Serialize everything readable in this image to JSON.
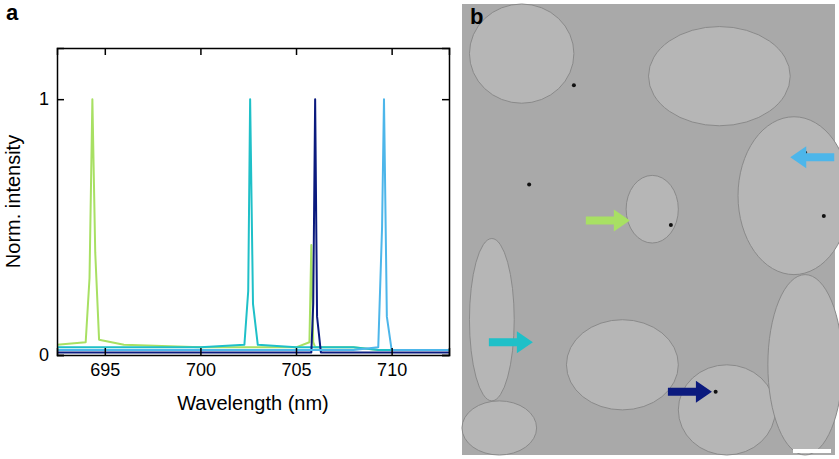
{
  "chart_data": {
    "type": "line",
    "annotations": [
      "a"
    ],
    "x_label": "Wavelength (nm)",
    "y_label": "Norm. intensity",
    "x": [
      692.5,
      694.0,
      694.2,
      694.35,
      694.5,
      694.7,
      696,
      700,
      702.3,
      702.5,
      702.6,
      702.75,
      703,
      705,
      705.7,
      705.8,
      705.9,
      706.0,
      706.1,
      706.3,
      708,
      709.3,
      709.5,
      709.6,
      709.75,
      710,
      712,
      713
    ],
    "series": [
      {
        "color": "#a8e063",
        "values": [
          0.04,
          0.05,
          0.3,
          1,
          0.4,
          0.06,
          0.04,
          0.03,
          0.03,
          0.03,
          0.03,
          0.03,
          0.03,
          0.03,
          0.05,
          0.43,
          0.05,
          0.03,
          0.03,
          0.03,
          0.03,
          0.02,
          0.02,
          0.02,
          0.02,
          0.02,
          0.02,
          0.02
        ]
      },
      {
        "color": "#1fc0c8",
        "values": [
          0.03,
          0.03,
          0.03,
          0.03,
          0.03,
          0.03,
          0.03,
          0.03,
          0.04,
          0.25,
          1,
          0.2,
          0.04,
          0.03,
          0.03,
          0.03,
          0.03,
          0.03,
          0.03,
          0.03,
          0.03,
          0.02,
          0.02,
          0.02,
          0.02,
          0.02,
          0.02,
          0.02
        ]
      },
      {
        "color": "#0b1a7e",
        "values": [
          0.01,
          0.01,
          0.01,
          0.01,
          0.01,
          0.01,
          0.01,
          0.01,
          0.01,
          0.01,
          0.01,
          0.01,
          0.01,
          0.01,
          0.01,
          0.01,
          0.2,
          1,
          0.15,
          0.01,
          0.01,
          0.01,
          0.01,
          0.01,
          0.01,
          0.01,
          0.01,
          0.01
        ]
      },
      {
        "color": "#4db6ea",
        "values": [
          0.02,
          0.02,
          0.02,
          0.02,
          0.02,
          0.02,
          0.02,
          0.02,
          0.02,
          0.02,
          0.02,
          0.02,
          0.02,
          0.02,
          0.02,
          0.02,
          0.02,
          0.02,
          0.02,
          0.02,
          0.02,
          0.03,
          0.5,
          1,
          0.15,
          0.02,
          0.02,
          0.02
        ]
      }
    ],
    "xlim": [
      692.5,
      713
    ],
    "xticks": [
      695,
      700,
      705,
      710
    ],
    "ylim": [
      0,
      1.2
    ],
    "yticks": [
      0,
      1
    ],
    "grid": false
  },
  "image_panel": {
    "annotations": [
      "b"
    ]
  }
}
